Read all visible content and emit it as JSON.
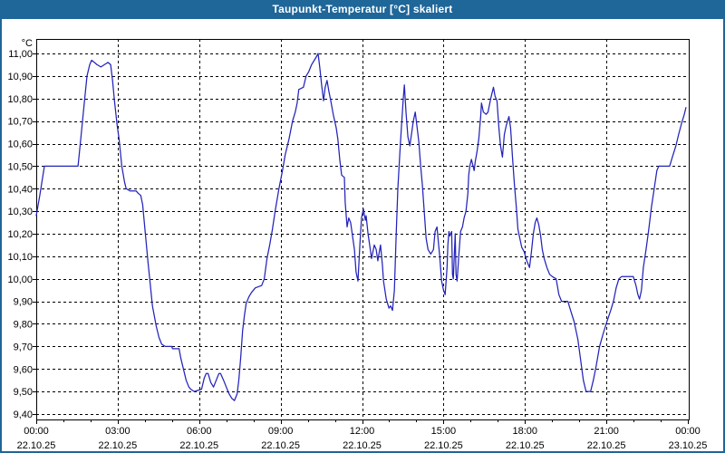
{
  "window": {
    "title": "Taupunkt-Temperatur [°C] skaliert",
    "colors": {
      "titlebar": "#1f6699",
      "border": "#1f6699",
      "background": "#ffffff",
      "plot_background": "#ffffff",
      "grid": "#000000",
      "axis": "#000000",
      "label_text": "#000000",
      "title_text": "#ffffff",
      "line": "#2323bb"
    }
  },
  "chart_data": {
    "type": "line",
    "title": "Taupunkt-Temperatur [°C] skaliert",
    "y_unit_label": "°C",
    "ylim": [
      9.4,
      11.0
    ],
    "y_tick_step": 0.1,
    "y_tick_labels": [
      "11,00",
      "10,90",
      "10,80",
      "10,70",
      "10,60",
      "10,50",
      "10,40",
      "10,30",
      "10,20",
      "10,10",
      "10,00",
      "9,90",
      "9,80",
      "9,70",
      "9,60",
      "9,50",
      "9,40"
    ],
    "x_range_hours": [
      0,
      24
    ],
    "x_minor_tick_every_hours": 1,
    "x_major_ticks": [
      {
        "hour": 0,
        "time": "00:00",
        "date": "22.10.25"
      },
      {
        "hour": 3,
        "time": "03:00",
        "date": "22.10.25"
      },
      {
        "hour": 6,
        "time": "06:00",
        "date": "22.10.25"
      },
      {
        "hour": 9,
        "time": "09:00",
        "date": "22.10.25"
      },
      {
        "hour": 12,
        "time": "12:00",
        "date": "22.10.25"
      },
      {
        "hour": 15,
        "time": "15:00",
        "date": "22.10.25"
      },
      {
        "hour": 18,
        "time": "18:00",
        "date": "22.10.25"
      },
      {
        "hour": 21,
        "time": "21:00",
        "date": "22.10.25"
      },
      {
        "hour": 24,
        "time": "00:00",
        "date": "23.10.25"
      }
    ],
    "grid": "dashed",
    "legend": "none",
    "series": [
      {
        "name": "Taupunkt-Temperatur",
        "color": "#2323bb",
        "points": [
          [
            0.0,
            10.28
          ],
          [
            0.13,
            10.37
          ],
          [
            0.3,
            10.5
          ],
          [
            1.54,
            10.5
          ],
          [
            1.64,
            10.62
          ],
          [
            1.77,
            10.78
          ],
          [
            1.87,
            10.9
          ],
          [
            1.97,
            10.95
          ],
          [
            2.04,
            10.97
          ],
          [
            2.14,
            10.96
          ],
          [
            2.24,
            10.95
          ],
          [
            2.38,
            10.94
          ],
          [
            2.51,
            10.95
          ],
          [
            2.64,
            10.96
          ],
          [
            2.74,
            10.95
          ],
          [
            2.81,
            10.88
          ],
          [
            2.88,
            10.79
          ],
          [
            2.98,
            10.68
          ],
          [
            3.05,
            10.62
          ],
          [
            3.15,
            10.5
          ],
          [
            3.25,
            10.43
          ],
          [
            3.31,
            10.4
          ],
          [
            3.45,
            10.39
          ],
          [
            3.68,
            10.39
          ],
          [
            3.75,
            10.38
          ],
          [
            3.85,
            10.37
          ],
          [
            3.92,
            10.33
          ],
          [
            4.02,
            10.2
          ],
          [
            4.12,
            10.07
          ],
          [
            4.18,
            10.0
          ],
          [
            4.28,
            9.88
          ],
          [
            4.42,
            9.79
          ],
          [
            4.52,
            9.74
          ],
          [
            4.62,
            9.71
          ],
          [
            4.75,
            9.7
          ],
          [
            4.99,
            9.7
          ],
          [
            5.02,
            9.69
          ],
          [
            5.26,
            9.69
          ],
          [
            5.32,
            9.65
          ],
          [
            5.42,
            9.6
          ],
          [
            5.52,
            9.55
          ],
          [
            5.62,
            9.52
          ],
          [
            5.69,
            9.51
          ],
          [
            5.82,
            9.5
          ],
          [
            6.09,
            9.51
          ],
          [
            6.19,
            9.56
          ],
          [
            6.26,
            9.58
          ],
          [
            6.33,
            9.58
          ],
          [
            6.43,
            9.54
          ],
          [
            6.53,
            9.52
          ],
          [
            6.63,
            9.55
          ],
          [
            6.73,
            9.58
          ],
          [
            6.79,
            9.58
          ],
          [
            6.9,
            9.55
          ],
          [
            7.0,
            9.52
          ],
          [
            7.1,
            9.49
          ],
          [
            7.2,
            9.47
          ],
          [
            7.3,
            9.46
          ],
          [
            7.4,
            9.49
          ],
          [
            7.46,
            9.55
          ],
          [
            7.53,
            9.65
          ],
          [
            7.6,
            9.77
          ],
          [
            7.67,
            9.84
          ],
          [
            7.73,
            9.89
          ],
          [
            7.83,
            9.92
          ],
          [
            7.93,
            9.94
          ],
          [
            8.07,
            9.96
          ],
          [
            8.3,
            9.97
          ],
          [
            8.4,
            10.0
          ],
          [
            8.5,
            10.09
          ],
          [
            8.6,
            10.15
          ],
          [
            8.7,
            10.22
          ],
          [
            8.8,
            10.3
          ],
          [
            8.94,
            10.4
          ],
          [
            9.07,
            10.48
          ],
          [
            9.17,
            10.55
          ],
          [
            9.31,
            10.62
          ],
          [
            9.44,
            10.7
          ],
          [
            9.54,
            10.74
          ],
          [
            9.61,
            10.78
          ],
          [
            9.67,
            10.84
          ],
          [
            9.84,
            10.85
          ],
          [
            9.94,
            10.9
          ],
          [
            10.04,
            10.92
          ],
          [
            10.14,
            10.95
          ],
          [
            10.24,
            10.97
          ],
          [
            10.34,
            10.99
          ],
          [
            10.38,
            11.0
          ],
          [
            10.44,
            10.94
          ],
          [
            10.51,
            10.86
          ],
          [
            10.58,
            10.79
          ],
          [
            10.64,
            10.85
          ],
          [
            10.71,
            10.88
          ],
          [
            10.78,
            10.83
          ],
          [
            10.85,
            10.79
          ],
          [
            10.94,
            10.73
          ],
          [
            11.05,
            10.67
          ],
          [
            11.11,
            10.62
          ],
          [
            11.18,
            10.53
          ],
          [
            11.25,
            10.46
          ],
          [
            11.35,
            10.45
          ],
          [
            11.38,
            10.34
          ],
          [
            11.45,
            10.23
          ],
          [
            11.51,
            10.27
          ],
          [
            11.58,
            10.25
          ],
          [
            11.65,
            10.19
          ],
          [
            11.72,
            10.13
          ],
          [
            11.78,
            10.03
          ],
          [
            11.85,
            9.99
          ],
          [
            11.92,
            10.15
          ],
          [
            11.98,
            10.27
          ],
          [
            12.05,
            10.31
          ],
          [
            12.12,
            10.26
          ],
          [
            12.15,
            10.28
          ],
          [
            12.22,
            10.2
          ],
          [
            12.28,
            10.15
          ],
          [
            12.35,
            10.09
          ],
          [
            12.45,
            10.15
          ],
          [
            12.52,
            10.13
          ],
          [
            12.58,
            10.08
          ],
          [
            12.65,
            10.13
          ],
          [
            12.68,
            10.15
          ],
          [
            12.75,
            10.06
          ],
          [
            12.79,
            9.99
          ],
          [
            12.89,
            9.91
          ],
          [
            12.99,
            9.87
          ],
          [
            13.05,
            9.88
          ],
          [
            13.12,
            9.86
          ],
          [
            13.19,
            9.95
          ],
          [
            13.26,
            10.2
          ],
          [
            13.32,
            10.4
          ],
          [
            13.39,
            10.55
          ],
          [
            13.45,
            10.67
          ],
          [
            13.52,
            10.8
          ],
          [
            13.56,
            10.86
          ],
          [
            13.62,
            10.74
          ],
          [
            13.69,
            10.63
          ],
          [
            13.76,
            10.59
          ],
          [
            13.82,
            10.64
          ],
          [
            13.89,
            10.7
          ],
          [
            13.96,
            10.74
          ],
          [
            14.02,
            10.68
          ],
          [
            14.09,
            10.61
          ],
          [
            14.16,
            10.5
          ],
          [
            14.22,
            10.42
          ],
          [
            14.29,
            10.3
          ],
          [
            14.36,
            10.18
          ],
          [
            14.43,
            10.13
          ],
          [
            14.53,
            10.11
          ],
          [
            14.63,
            10.13
          ],
          [
            14.69,
            10.21
          ],
          [
            14.76,
            10.23
          ],
          [
            14.79,
            10.19
          ],
          [
            14.86,
            10.1
          ],
          [
            14.93,
            9.99
          ],
          [
            15.0,
            9.95
          ],
          [
            15.06,
            9.93
          ],
          [
            15.13,
            10.05
          ],
          [
            15.16,
            10.15
          ],
          [
            15.2,
            10.21
          ],
          [
            15.23,
            10.19
          ],
          [
            15.3,
            10.21
          ],
          [
            15.33,
            10.02
          ],
          [
            15.36,
            10.0
          ],
          [
            15.43,
            10.2
          ],
          [
            15.46,
            10.02
          ],
          [
            15.5,
            9.99
          ],
          [
            15.56,
            10.1
          ],
          [
            15.63,
            10.21
          ],
          [
            15.7,
            10.23
          ],
          [
            15.76,
            10.27
          ],
          [
            15.83,
            10.3
          ],
          [
            15.9,
            10.38
          ],
          [
            15.93,
            10.46
          ],
          [
            15.97,
            10.5
          ],
          [
            16.03,
            10.53
          ],
          [
            16.07,
            10.51
          ],
          [
            16.13,
            10.48
          ],
          [
            16.17,
            10.52
          ],
          [
            16.23,
            10.56
          ],
          [
            16.3,
            10.62
          ],
          [
            16.37,
            10.72
          ],
          [
            16.4,
            10.78
          ],
          [
            16.47,
            10.74
          ],
          [
            16.57,
            10.73
          ],
          [
            16.64,
            10.74
          ],
          [
            16.74,
            10.8
          ],
          [
            16.84,
            10.85
          ],
          [
            16.9,
            10.81
          ],
          [
            16.97,
            10.79
          ],
          [
            17.04,
            10.67
          ],
          [
            17.1,
            10.59
          ],
          [
            17.17,
            10.54
          ],
          [
            17.24,
            10.64
          ],
          [
            17.31,
            10.68
          ],
          [
            17.41,
            10.72
          ],
          [
            17.47,
            10.67
          ],
          [
            17.54,
            10.54
          ],
          [
            17.61,
            10.42
          ],
          [
            17.68,
            10.32
          ],
          [
            17.74,
            10.22
          ],
          [
            17.81,
            10.18
          ],
          [
            17.88,
            10.14
          ],
          [
            17.97,
            10.12
          ],
          [
            18.07,
            10.08
          ],
          [
            18.17,
            10.05
          ],
          [
            18.24,
            10.12
          ],
          [
            18.31,
            10.2
          ],
          [
            18.38,
            10.25
          ],
          [
            18.44,
            10.27
          ],
          [
            18.51,
            10.24
          ],
          [
            18.58,
            10.19
          ],
          [
            18.64,
            10.13
          ],
          [
            18.71,
            10.09
          ],
          [
            18.81,
            10.05
          ],
          [
            18.91,
            10.02
          ],
          [
            19.01,
            10.01
          ],
          [
            19.15,
            10.0
          ],
          [
            19.25,
            9.93
          ],
          [
            19.35,
            9.9
          ],
          [
            19.58,
            9.9
          ],
          [
            19.68,
            9.86
          ],
          [
            19.81,
            9.81
          ],
          [
            19.95,
            9.73
          ],
          [
            20.05,
            9.64
          ],
          [
            20.15,
            9.55
          ],
          [
            20.25,
            9.5
          ],
          [
            20.42,
            9.5
          ],
          [
            20.52,
            9.55
          ],
          [
            20.62,
            9.61
          ],
          [
            20.75,
            9.7
          ],
          [
            20.89,
            9.76
          ],
          [
            21.02,
            9.81
          ],
          [
            21.16,
            9.86
          ],
          [
            21.26,
            9.9
          ],
          [
            21.36,
            9.96
          ],
          [
            21.46,
            10.0
          ],
          [
            21.56,
            10.01
          ],
          [
            21.99,
            10.01
          ],
          [
            22.09,
            9.97
          ],
          [
            22.16,
            9.93
          ],
          [
            22.22,
            9.91
          ],
          [
            22.29,
            9.95
          ],
          [
            22.36,
            10.05
          ],
          [
            22.46,
            10.13
          ],
          [
            22.56,
            10.22
          ],
          [
            22.66,
            10.32
          ],
          [
            22.76,
            10.4
          ],
          [
            22.86,
            10.48
          ],
          [
            22.93,
            10.5
          ],
          [
            23.33,
            10.5
          ],
          [
            23.43,
            10.54
          ],
          [
            23.56,
            10.59
          ],
          [
            23.66,
            10.64
          ],
          [
            23.77,
            10.69
          ],
          [
            23.87,
            10.73
          ],
          [
            23.93,
            10.76
          ]
        ]
      }
    ]
  }
}
